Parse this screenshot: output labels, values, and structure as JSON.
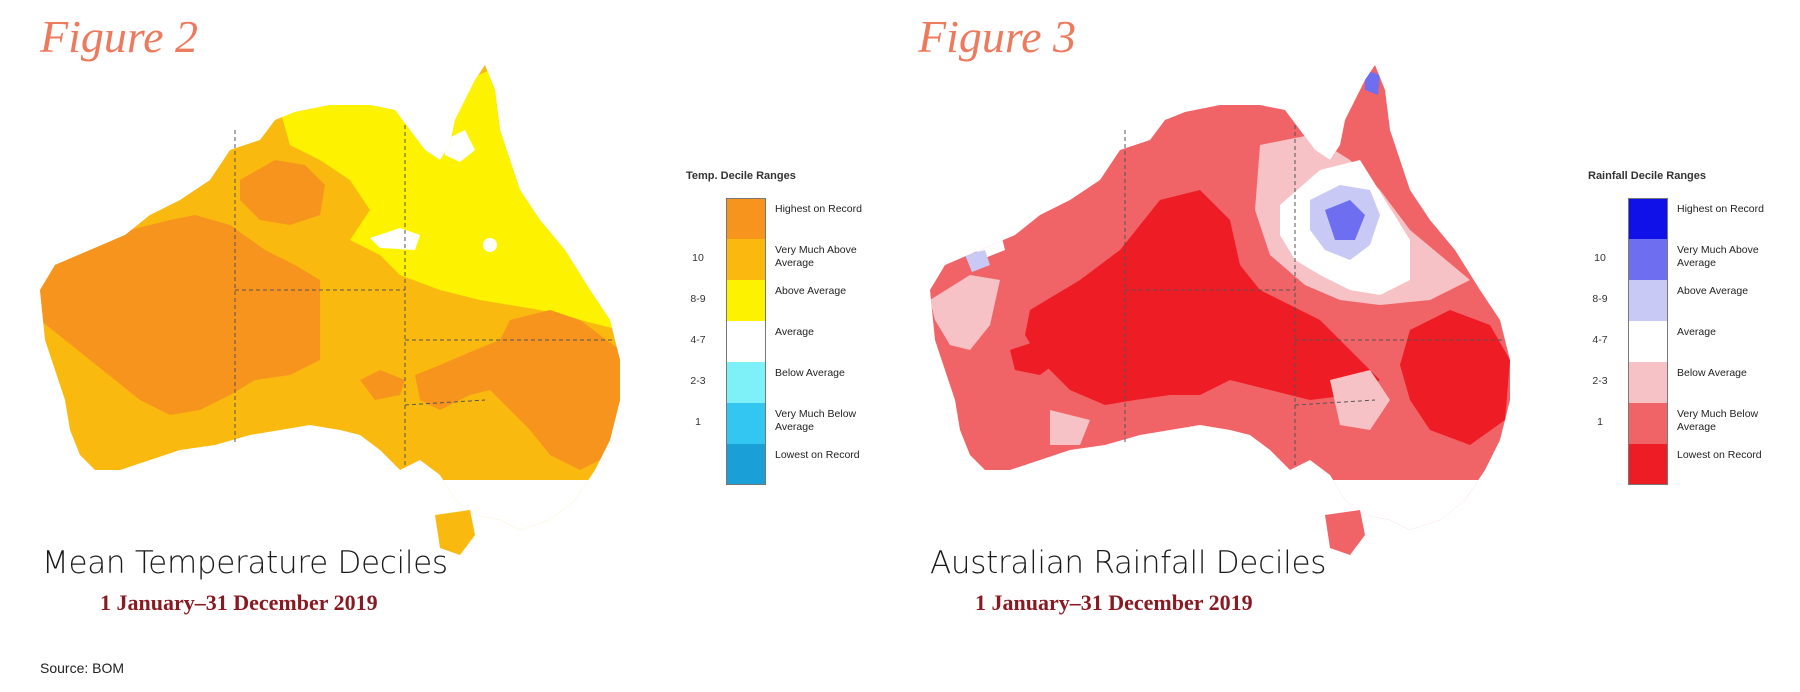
{
  "figures": [
    {
      "title": "Figure 2",
      "legend_title": "Temp. Decile Ranges",
      "caption_title": "Mean Temperature Deciles",
      "caption_date": "1 January–31 December 2019",
      "colors": {
        "highest": "#f7941d",
        "very_much_above": "#f9b90f",
        "above": "#fdf200",
        "average": "#ffffff",
        "below": "#7ef0f8",
        "very_much_below": "#33c6f0",
        "lowest": "#1aa0d6"
      },
      "legend": [
        {
          "num": "",
          "label": "Highest on Record",
          "color": "#f7941d"
        },
        {
          "num": "10",
          "label": "Very Much Above Average",
          "color": "#f9b90f"
        },
        {
          "num": "8-9",
          "label": "Above Average",
          "color": "#fdf200"
        },
        {
          "num": "4-7",
          "label": "Average",
          "color": "#ffffff"
        },
        {
          "num": "2-3",
          "label": "Below Average",
          "color": "#7ef0f8"
        },
        {
          "num": "1",
          "label": "Very Much Below Average",
          "color": "#33c6f0"
        },
        {
          "num": "",
          "label": "Lowest on Record",
          "color": "#1aa0d6"
        }
      ]
    },
    {
      "title": "Figure 3",
      "legend_title": "Rainfall Decile Ranges",
      "caption_title": "Australian Rainfall Deciles",
      "caption_date": "1 January–31 December 2019",
      "colors": {
        "highest": "#1010e8",
        "very_much_above": "#6e6ef0",
        "above": "#c9c9f6",
        "average": "#ffffff",
        "below": "#f7c2c6",
        "very_much_below": "#f06468",
        "lowest": "#ee1c24"
      },
      "legend": [
        {
          "num": "",
          "label": "Highest on Record",
          "color": "#1010e8"
        },
        {
          "num": "10",
          "label": "Very Much Above Average",
          "color": "#6e6ef0"
        },
        {
          "num": "8-9",
          "label": "Above Average",
          "color": "#c9c9f6"
        },
        {
          "num": "4-7",
          "label": "Average",
          "color": "#ffffff"
        },
        {
          "num": "2-3",
          "label": "Below Average",
          "color": "#f7c2c6"
        },
        {
          "num": "1",
          "label": "Very Much Below Average",
          "color": "#f06468"
        },
        {
          "num": "",
          "label": "Lowest on Record",
          "color": "#ee1c24"
        }
      ]
    }
  ],
  "source": "Source: BOM"
}
